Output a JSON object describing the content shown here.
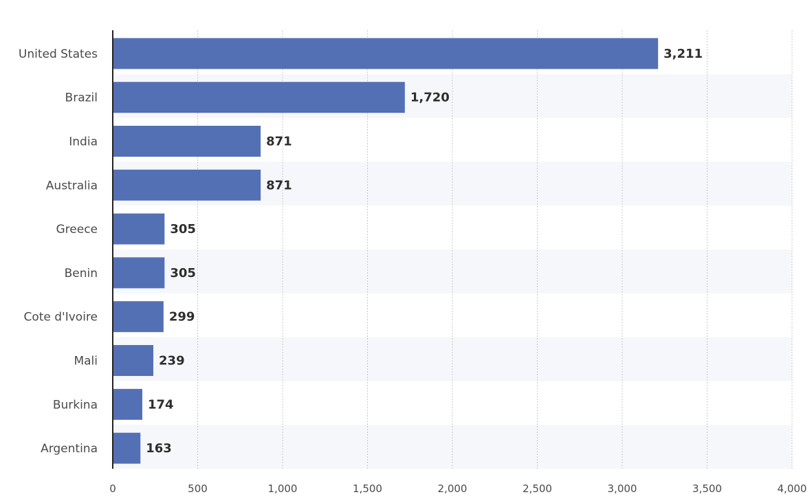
{
  "chart_data": {
    "type": "bar",
    "orientation": "horizontal",
    "title": "",
    "xlabel": "",
    "ylabel": "",
    "categories": [
      "United States",
      "Brazil",
      "India",
      "Australia",
      "Greece",
      "Benin",
      "Cote d'Ivoire",
      "Mali",
      "Burkina",
      "Argentina"
    ],
    "values": [
      3211,
      1720,
      871,
      871,
      305,
      305,
      299,
      239,
      174,
      163
    ],
    "value_labels": [
      "3,211",
      "1,720",
      "871",
      "871",
      "305",
      "305",
      "299",
      "239",
      "174",
      "163"
    ],
    "xlim": [
      0,
      4000
    ],
    "ticks": [
      0,
      500,
      1000,
      1500,
      2000,
      2500,
      3000,
      3500,
      4000
    ],
    "tick_labels": [
      "0",
      "500",
      "1,000",
      "1,500",
      "2,000",
      "2,500",
      "3,000",
      "3,500",
      "4,000"
    ],
    "grid": true,
    "legend": false,
    "colors": {
      "bar": "#5470b5",
      "grid": "#c8c8c8",
      "axis": "#222222",
      "alt_band": "#f6f7fb"
    }
  }
}
